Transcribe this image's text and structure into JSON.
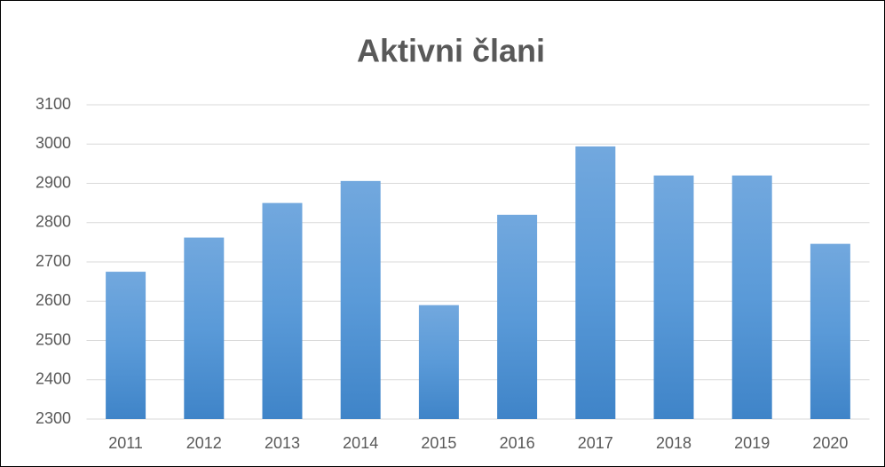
{
  "chart_data": {
    "type": "bar",
    "title": "Aktivni člani",
    "categories": [
      "2011",
      "2012",
      "2013",
      "2014",
      "2015",
      "2016",
      "2017",
      "2018",
      "2019",
      "2020"
    ],
    "values": [
      2675,
      2762,
      2850,
      2906,
      2590,
      2820,
      2994,
      2920,
      2920,
      2746
    ],
    "color": "#5b9bd5",
    "ylim": [
      2300,
      3100
    ],
    "yticks": [
      2300,
      2400,
      2500,
      2600,
      2700,
      2800,
      2900,
      3000,
      3100
    ],
    "grid": true
  }
}
